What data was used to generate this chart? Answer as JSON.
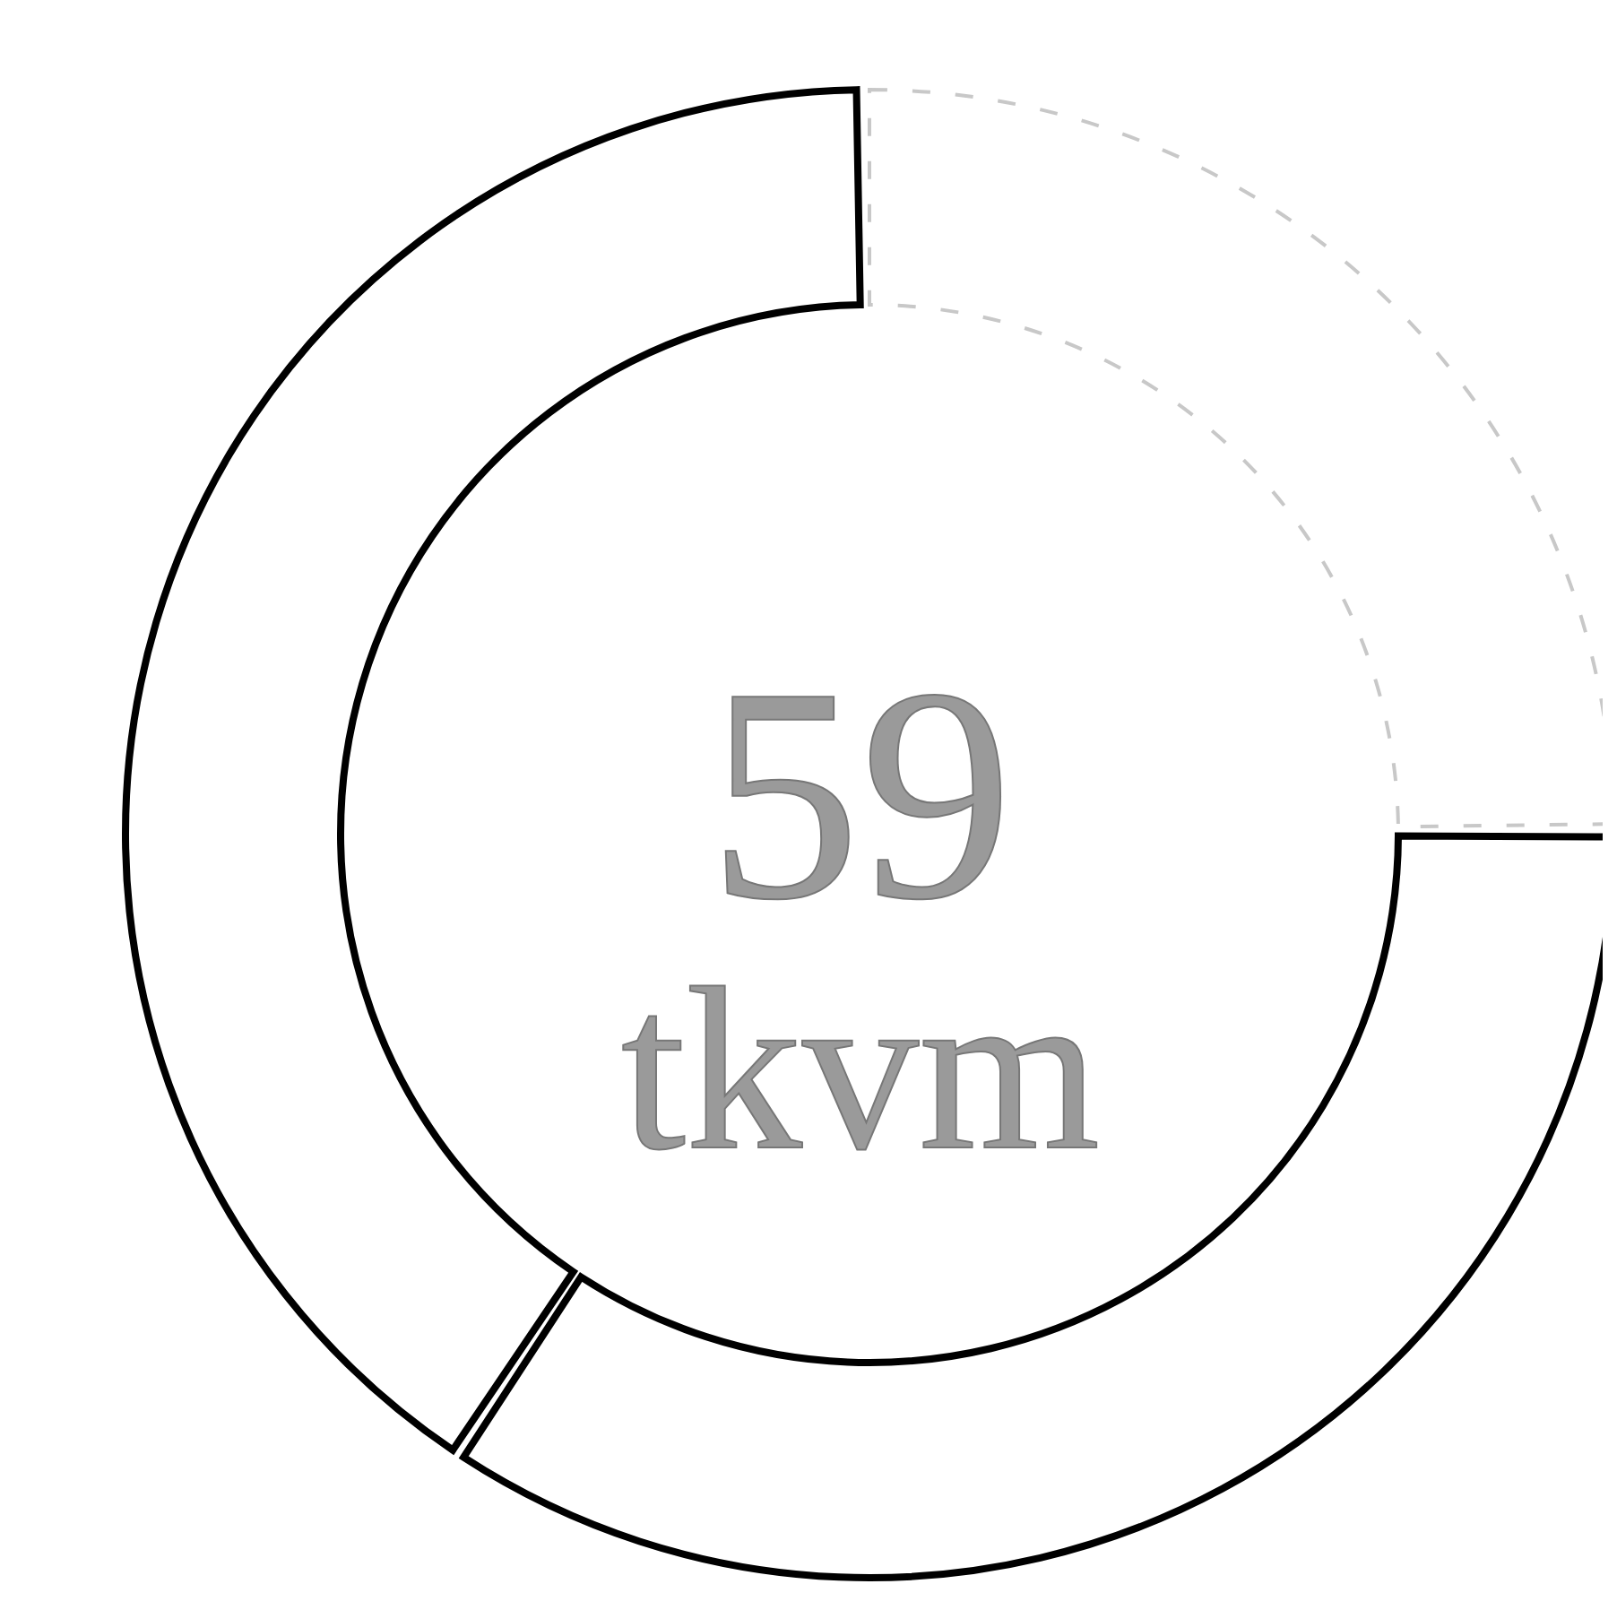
{
  "chart_data": {
    "type": "donut",
    "categories": [
      null,
      null,
      null
    ],
    "values": [
      25,
      34.4,
      40.6
    ],
    "colors": [
      "#c8c8c8",
      "#000000",
      "#000000"
    ],
    "annotations": [
      "59",
      "tkvm"
    ]
  }
}
